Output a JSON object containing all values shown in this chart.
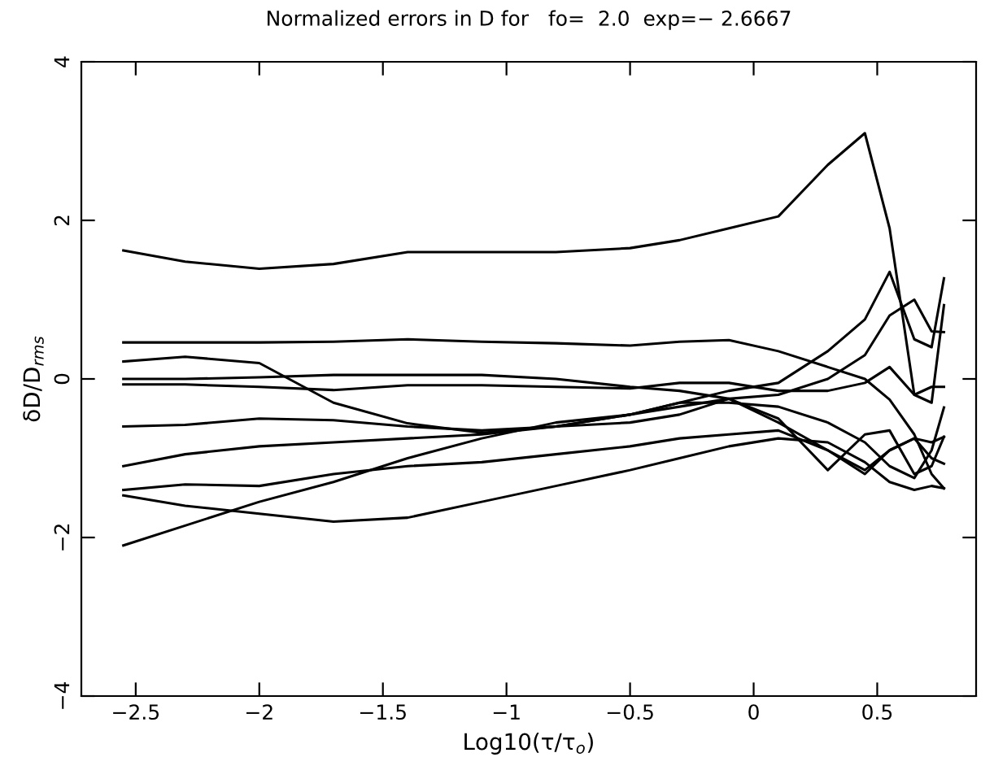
{
  "chart_data": {
    "type": "line",
    "title": "Normalized errors in D for   fo=  2.0  exp=− 2.6667",
    "xlabel": "Log10(τ/τ$_{o}$)",
    "ylabel": "δD/D$_{rms}$",
    "x": [
      -2.55,
      -2.3,
      -2.0,
      -1.7,
      -1.4,
      -1.1,
      -0.8,
      -0.5,
      -0.3,
      -0.1,
      0.1,
      0.3,
      0.45,
      0.55,
      0.65,
      0.72,
      0.77
    ],
    "series": [
      {
        "color": "#000000",
        "values": [
          1.62,
          1.48,
          1.39,
          1.45,
          1.6,
          1.6,
          1.6,
          1.65,
          1.75,
          1.9,
          2.05,
          2.7,
          3.1,
          1.9,
          -0.2,
          -0.3,
          0.93
        ]
      },
      {
        "color": "#000000",
        "values": [
          0.46,
          0.46,
          0.46,
          0.47,
          0.5,
          0.47,
          0.45,
          0.42,
          0.47,
          0.49,
          0.35,
          0.15,
          0.0,
          -0.26,
          -0.7,
          -1.2,
          -1.38
        ]
      },
      {
        "color": "#000000",
        "values": [
          0.22,
          0.28,
          0.2,
          -0.3,
          -0.56,
          -0.68,
          -0.6,
          -0.45,
          -0.3,
          -0.15,
          -0.05,
          0.35,
          0.75,
          1.35,
          0.5,
          0.4,
          1.27
        ]
      },
      {
        "color": "#000000",
        "values": [
          0.0,
          0.0,
          0.02,
          0.05,
          0.05,
          0.05,
          0.0,
          -0.1,
          -0.15,
          -0.25,
          -0.55,
          -0.9,
          -1.15,
          -0.9,
          -0.75,
          -0.8,
          -0.73
        ]
      },
      {
        "color": "#000000",
        "values": [
          -0.07,
          -0.07,
          -0.1,
          -0.14,
          -0.08,
          -0.08,
          -0.1,
          -0.12,
          -0.05,
          -0.05,
          -0.15,
          -0.15,
          -0.05,
          0.15,
          -0.2,
          -0.1,
          -0.1
        ]
      },
      {
        "color": "#000000",
        "values": [
          -0.6,
          -0.58,
          -0.5,
          -0.52,
          -0.6,
          -0.65,
          -0.6,
          -0.55,
          -0.45,
          -0.25,
          -0.2,
          0.0,
          0.3,
          0.8,
          1.0,
          0.6,
          0.59
        ]
      },
      {
        "color": "#000000",
        "values": [
          -1.1,
          -0.95,
          -0.85,
          -0.8,
          -0.75,
          -0.7,
          -0.6,
          -0.45,
          -0.3,
          -0.3,
          -0.35,
          -0.55,
          -0.8,
          -1.1,
          -1.25,
          -0.9,
          -0.36
        ]
      },
      {
        "color": "#000000",
        "values": [
          -1.4,
          -1.33,
          -1.35,
          -1.2,
          -1.1,
          -1.05,
          -0.95,
          -0.85,
          -0.75,
          -0.7,
          -0.65,
          -0.9,
          -1.2,
          -0.9,
          -0.75,
          -1.0,
          -1.07
        ]
      },
      {
        "color": "#000000",
        "values": [
          -1.47,
          -1.6,
          -1.7,
          -1.8,
          -1.75,
          -1.55,
          -1.35,
          -1.15,
          -1.0,
          -0.85,
          -0.75,
          -0.8,
          -1.05,
          -1.3,
          -1.4,
          -1.35,
          -1.38
        ]
      },
      {
        "color": "#000000",
        "values": [
          -2.1,
          -1.85,
          -1.55,
          -1.3,
          -1.0,
          -0.75,
          -0.55,
          -0.45,
          -0.35,
          -0.25,
          -0.5,
          -1.15,
          -0.7,
          -0.65,
          -1.2,
          -1.1,
          -0.73
        ]
      }
    ],
    "xlim": [
      -2.72,
      0.9
    ],
    "xticks": [
      {
        "value": -2.5,
        "label": "−2.5"
      },
      {
        "value": -2,
        "label": "−2"
      },
      {
        "value": -1.5,
        "label": "−1.5"
      },
      {
        "value": -1,
        "label": "−1"
      },
      {
        "value": -0.5,
        "label": "−0.5"
      },
      0,
      0.5
    ],
    "ylim": [
      -4,
      4
    ],
    "yticks": [
      {
        "value": -4,
        "label": "−4"
      },
      {
        "value": -2,
        "label": "−2"
      },
      0,
      2,
      4
    ],
    "grid": false,
    "legend": false,
    "marker": "none",
    "line_style": "solid"
  }
}
